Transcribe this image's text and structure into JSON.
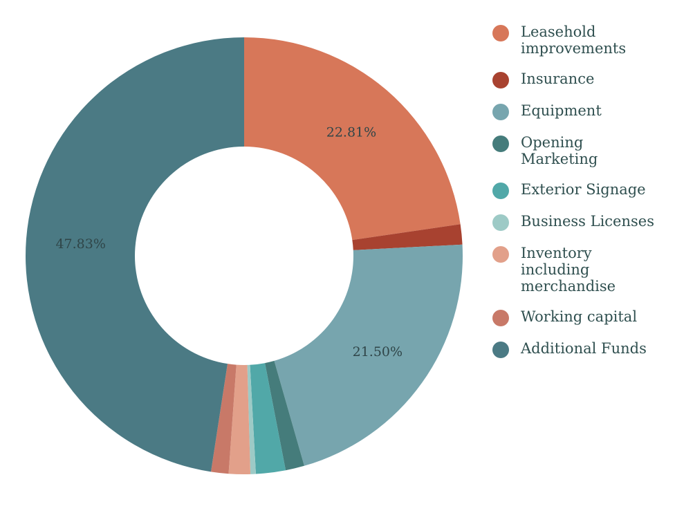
{
  "chart_data": {
    "type": "pie",
    "donut": true,
    "categories": [
      "Leasehold improvements",
      "Insurance",
      "Equipment",
      "Opening Marketing",
      "Exterior Signage",
      "Business Licenses",
      "Inventory including merchandise",
      "Working capital",
      "Additional Funds"
    ],
    "values": [
      22.81,
      1.5,
      21.5,
      1.4,
      2.2,
      0.4,
      1.6,
      1.3,
      47.83
    ],
    "data_labels": [
      "22.81%",
      "",
      "21.50%",
      "",
      "",
      "",
      "",
      "",
      "47.83%"
    ],
    "colors": [
      "#d77759",
      "#a84230",
      "#77a5ae",
      "#457c7b",
      "#51a8a8",
      "#9dcac6",
      "#e2a08a",
      "#c87968",
      "#4b7a84"
    ],
    "legend_position": "right",
    "title": ""
  }
}
